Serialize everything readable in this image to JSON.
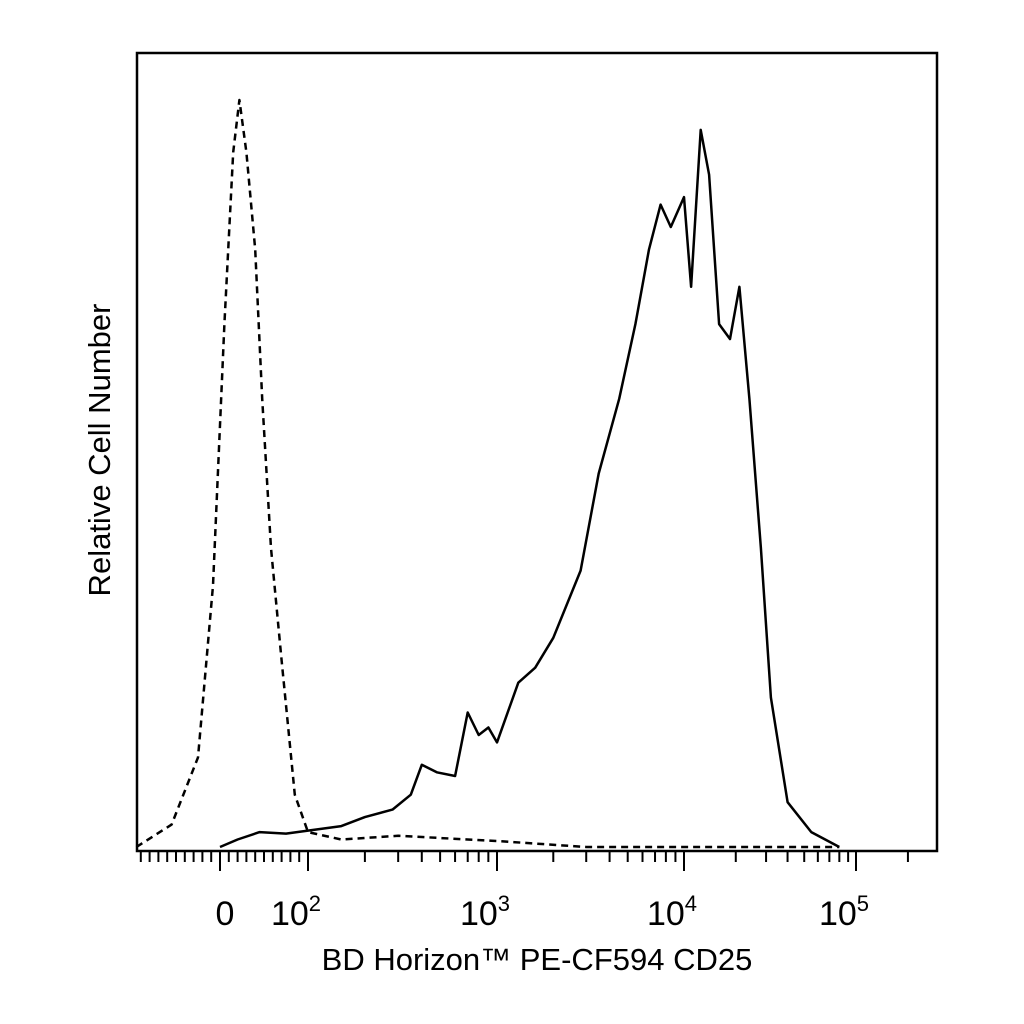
{
  "chart_data": {
    "type": "line",
    "title": "",
    "xlabel": "BD Horizon™ PE-CF594 CD25",
    "ylabel": "Relative Cell Number",
    "x_scale": "biexponential",
    "xlim": [
      -150,
      200000
    ],
    "ylim": [
      0,
      1.0
    ],
    "grid": false,
    "legend": "none",
    "x_tick_labels": [
      {
        "value": 0,
        "base": "0",
        "exp": ""
      },
      {
        "value": 100,
        "base": "10",
        "exp": "2"
      },
      {
        "value": 1000,
        "base": "10",
        "exp": "3"
      },
      {
        "value": 10000,
        "base": "10",
        "exp": "4"
      },
      {
        "value": 100000,
        "base": "10",
        "exp": "5"
      }
    ],
    "series": [
      {
        "style": "dashed",
        "points": [
          [
            -95,
            0.0
          ],
          [
            -55,
            0.03
          ],
          [
            -25,
            0.12
          ],
          [
            -8,
            0.35
          ],
          [
            5,
            0.7
          ],
          [
            15,
            0.93
          ],
          [
            22,
            1.0
          ],
          [
            30,
            0.93
          ],
          [
            40,
            0.8
          ],
          [
            48,
            0.6
          ],
          [
            58,
            0.4
          ],
          [
            70,
            0.25
          ],
          [
            85,
            0.07
          ],
          [
            100,
            0.02
          ],
          [
            150,
            0.01
          ],
          [
            300,
            0.015
          ],
          [
            500,
            0.012
          ],
          [
            1000,
            0.008
          ],
          [
            3000,
            0.0
          ],
          [
            80000,
            0.0
          ]
        ]
      },
      {
        "style": "solid",
        "points": [
          [
            0,
            0.0
          ],
          [
            20,
            0.01
          ],
          [
            45,
            0.02
          ],
          [
            75,
            0.018
          ],
          [
            100,
            0.022
          ],
          [
            150,
            0.028
          ],
          [
            200,
            0.04
          ],
          [
            280,
            0.05
          ],
          [
            350,
            0.07
          ],
          [
            400,
            0.11
          ],
          [
            480,
            0.1
          ],
          [
            600,
            0.095
          ],
          [
            700,
            0.18
          ],
          [
            800,
            0.15
          ],
          [
            900,
            0.16
          ],
          [
            1000,
            0.14
          ],
          [
            1300,
            0.22
          ],
          [
            1600,
            0.24
          ],
          [
            2000,
            0.28
          ],
          [
            2800,
            0.37
          ],
          [
            3500,
            0.5
          ],
          [
            4500,
            0.6
          ],
          [
            5500,
            0.7
          ],
          [
            6500,
            0.8
          ],
          [
            7500,
            0.86
          ],
          [
            8500,
            0.83
          ],
          [
            10000,
            0.87
          ],
          [
            11000,
            0.75
          ],
          [
            12500,
            0.96
          ],
          [
            14000,
            0.9
          ],
          [
            16000,
            0.7
          ],
          [
            18500,
            0.68
          ],
          [
            21000,
            0.75
          ],
          [
            24000,
            0.6
          ],
          [
            28000,
            0.4
          ],
          [
            32000,
            0.2
          ],
          [
            40000,
            0.06
          ],
          [
            55000,
            0.02
          ],
          [
            80000,
            0.0
          ]
        ]
      }
    ]
  }
}
